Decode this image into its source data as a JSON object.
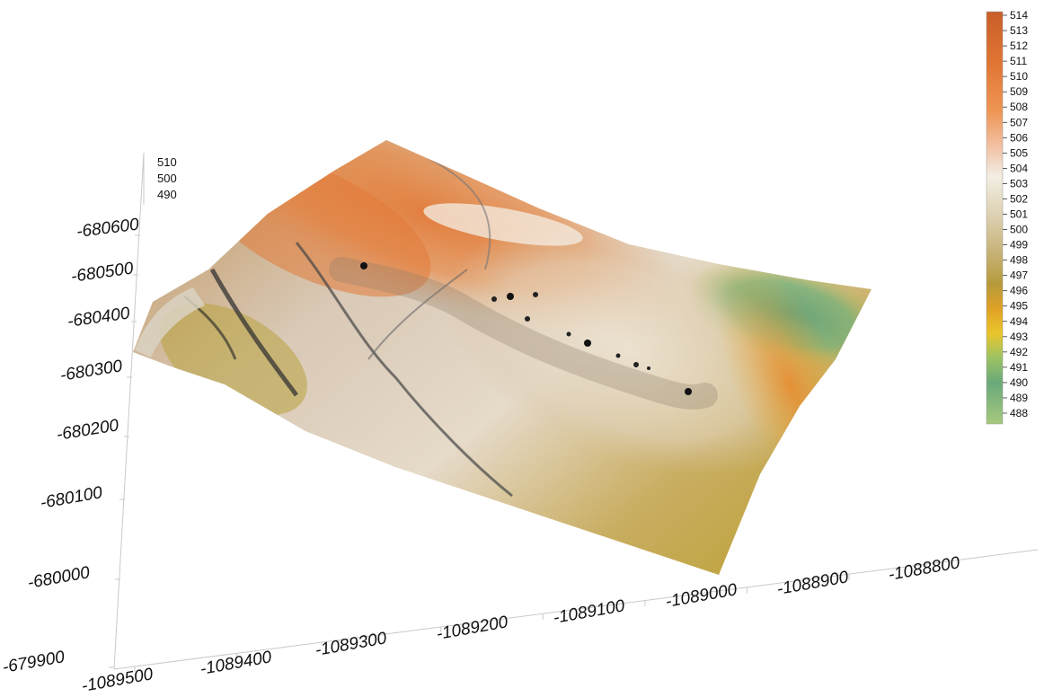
{
  "chart_data": {
    "type": "heatmap",
    "subtype": "3d-surface",
    "title": "",
    "xlabel": "",
    "ylabel": "",
    "zlabel": "",
    "x_ticks": [
      "-1089500",
      "-1089400",
      "-1089300",
      "-1089200",
      "-1089100",
      "-1089000",
      "-1088900",
      "-1088800"
    ],
    "y_ticks": [
      "-679900",
      "-680000",
      "-680100",
      "-680200",
      "-680300",
      "-680400",
      "-680500",
      "-680600"
    ],
    "z_ticks": [
      "510",
      "500",
      "490"
    ],
    "xlim": [
      -1089500,
      -1088750
    ],
    "ylim": [
      -680650,
      -679900
    ],
    "zlim": [
      488,
      514
    ],
    "colorbar": {
      "placement": "right",
      "min": 488,
      "max": 514,
      "labels": [
        "514",
        "513",
        "512",
        "511",
        "510",
        "509",
        "508",
        "507",
        "506",
        "505",
        "504",
        "503",
        "502",
        "501",
        "500",
        "499",
        "498",
        "497",
        "496",
        "495",
        "494",
        "493",
        "492",
        "491",
        "490",
        "489",
        "488"
      ],
      "colors": [
        "#c95e2a",
        "#d6672d",
        "#e07433",
        "#e8843f",
        "#ee9554",
        "#f1a673",
        "#f2b996",
        "#f0cbb2",
        "#efdcca",
        "#f2ebe0",
        "#ece8da",
        "#e5dcc3",
        "#dccfae",
        "#d0c197",
        "#c7b47a",
        "#bba65a",
        "#b69a3c",
        "#c39628",
        "#e0a125",
        "#f0bf28",
        "#d9cf40",
        "#a8c660",
        "#79b572",
        "#6aa97a",
        "#7eb27e",
        "#91bd7e",
        "#a7c97e"
      ]
    }
  }
}
